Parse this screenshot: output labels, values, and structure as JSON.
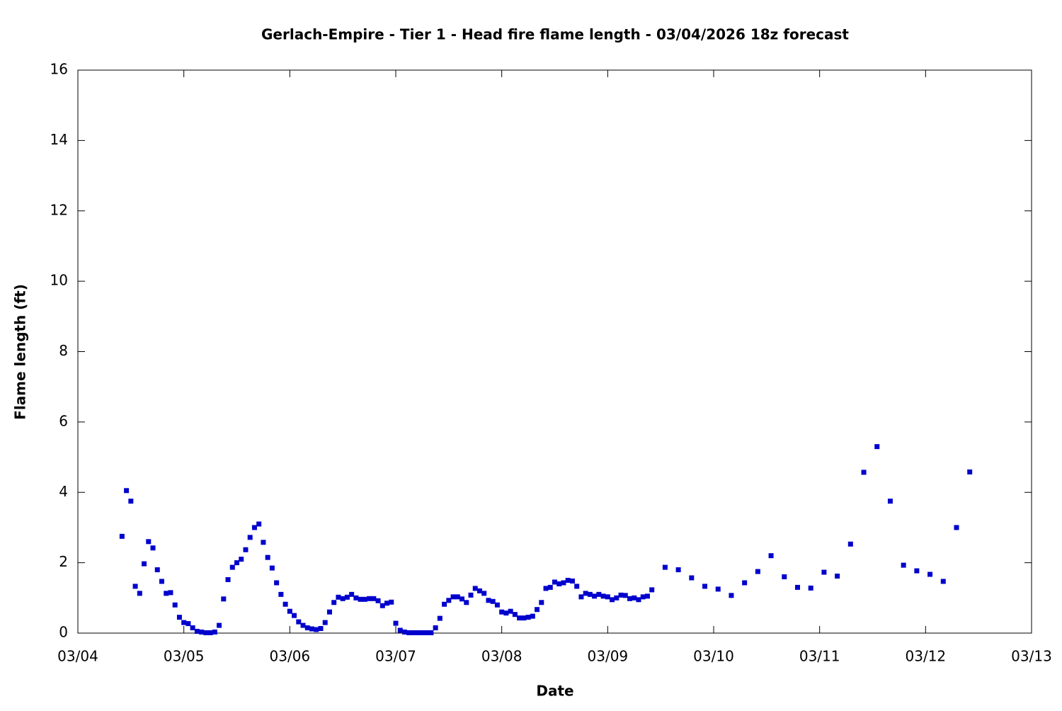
{
  "chart_data": {
    "type": "scatter",
    "title": "Gerlach-Empire - Tier 1 - Head fire flame length - 03/04/2026 18z forecast",
    "x_label": "Date",
    "y_label": "Flame length (ft)",
    "color": "#0000cc",
    "x": [
      10,
      11,
      12,
      13,
      14,
      15,
      16,
      17,
      18,
      19,
      20,
      21,
      22,
      23,
      24,
      25,
      26,
      27,
      28,
      29,
      30,
      31,
      32,
      33,
      34,
      35,
      36,
      37,
      38,
      39,
      40,
      41,
      42,
      43,
      44,
      45,
      46,
      47,
      48,
      49,
      50,
      51,
      52,
      53,
      54,
      55,
      56,
      57,
      58,
      59,
      60,
      61,
      62,
      63,
      64,
      65,
      66,
      67,
      68,
      69,
      70,
      71,
      72,
      73,
      74,
      75,
      76,
      77,
      78,
      79,
      80,
      81,
      82,
      83,
      84,
      85,
      86,
      87,
      88,
      89,
      90,
      91,
      92,
      93,
      94,
      95,
      96,
      97,
      98,
      99,
      100,
      101,
      102,
      103,
      104,
      105,
      106,
      107,
      108,
      109,
      110,
      111,
      112,
      113,
      114,
      115,
      116,
      117,
      118,
      119,
      120,
      121,
      122,
      123,
      124,
      125,
      126,
      127,
      128,
      129,
      130,
      133,
      136,
      139,
      142,
      145,
      148,
      151,
      154,
      157,
      160,
      163,
      166,
      169,
      172,
      175,
      178,
      181,
      184,
      187,
      190,
      193,
      196,
      199,
      202
    ],
    "values": [
      2.75,
      4.05,
      3.75,
      1.33,
      1.13,
      1.97,
      2.6,
      2.42,
      1.8,
      1.47,
      1.13,
      1.15,
      0.8,
      0.45,
      0.3,
      0.27,
      0.15,
      0.05,
      0.03,
      0.01,
      0.01,
      0.03,
      0.22,
      0.97,
      1.52,
      1.87,
      2.0,
      2.1,
      2.37,
      2.72,
      3.0,
      3.1,
      2.58,
      2.15,
      1.85,
      1.43,
      1.1,
      0.82,
      0.62,
      0.5,
      0.32,
      0.22,
      0.15,
      0.12,
      0.1,
      0.13,
      0.3,
      0.6,
      0.87,
      1.02,
      0.98,
      1.02,
      1.1,
      1.0,
      0.96,
      0.96,
      0.98,
      0.98,
      0.92,
      0.78,
      0.85,
      0.88,
      0.28,
      0.08,
      0.03,
      0.01,
      0.01,
      0.01,
      0.01,
      0.01,
      0.01,
      0.15,
      0.42,
      0.82,
      0.93,
      1.03,
      1.03,
      0.97,
      0.87,
      1.08,
      1.27,
      1.2,
      1.13,
      0.93,
      0.9,
      0.8,
      0.6,
      0.57,
      0.62,
      0.53,
      0.43,
      0.43,
      0.45,
      0.48,
      0.67,
      0.87,
      1.27,
      1.3,
      1.45,
      1.4,
      1.43,
      1.5,
      1.48,
      1.33,
      1.03,
      1.13,
      1.1,
      1.05,
      1.1,
      1.05,
      1.03,
      0.95,
      1.0,
      1.08,
      1.07,
      0.98,
      1.0,
      0.95,
      1.03,
      1.05,
      1.23,
      1.87,
      1.8,
      1.57,
      1.33,
      1.25,
      1.07,
      1.43,
      1.75,
      2.2,
      1.6,
      1.3,
      1.28,
      1.73,
      1.62,
      2.53,
      4.57,
      5.3,
      3.75,
      1.93,
      1.77,
      1.67,
      1.47,
      3.0,
      4.58
    ],
    "xlim": [
      0,
      216
    ],
    "xticks": [
      {
        "value": 0,
        "label": "03/04"
      },
      {
        "value": 24,
        "label": "03/05"
      },
      {
        "value": 48,
        "label": "03/06"
      },
      {
        "value": 72,
        "label": "03/07"
      },
      {
        "value": 96,
        "label": "03/08"
      },
      {
        "value": 120,
        "label": "03/09"
      },
      {
        "value": 144,
        "label": "03/10"
      },
      {
        "value": 168,
        "label": "03/11"
      },
      {
        "value": 192,
        "label": "03/12"
      },
      {
        "value": 216,
        "label": "03/13"
      }
    ],
    "ylim": [
      0,
      16
    ],
    "yticks": [
      0,
      2,
      4,
      6,
      8,
      10,
      12,
      14,
      16
    ]
  }
}
